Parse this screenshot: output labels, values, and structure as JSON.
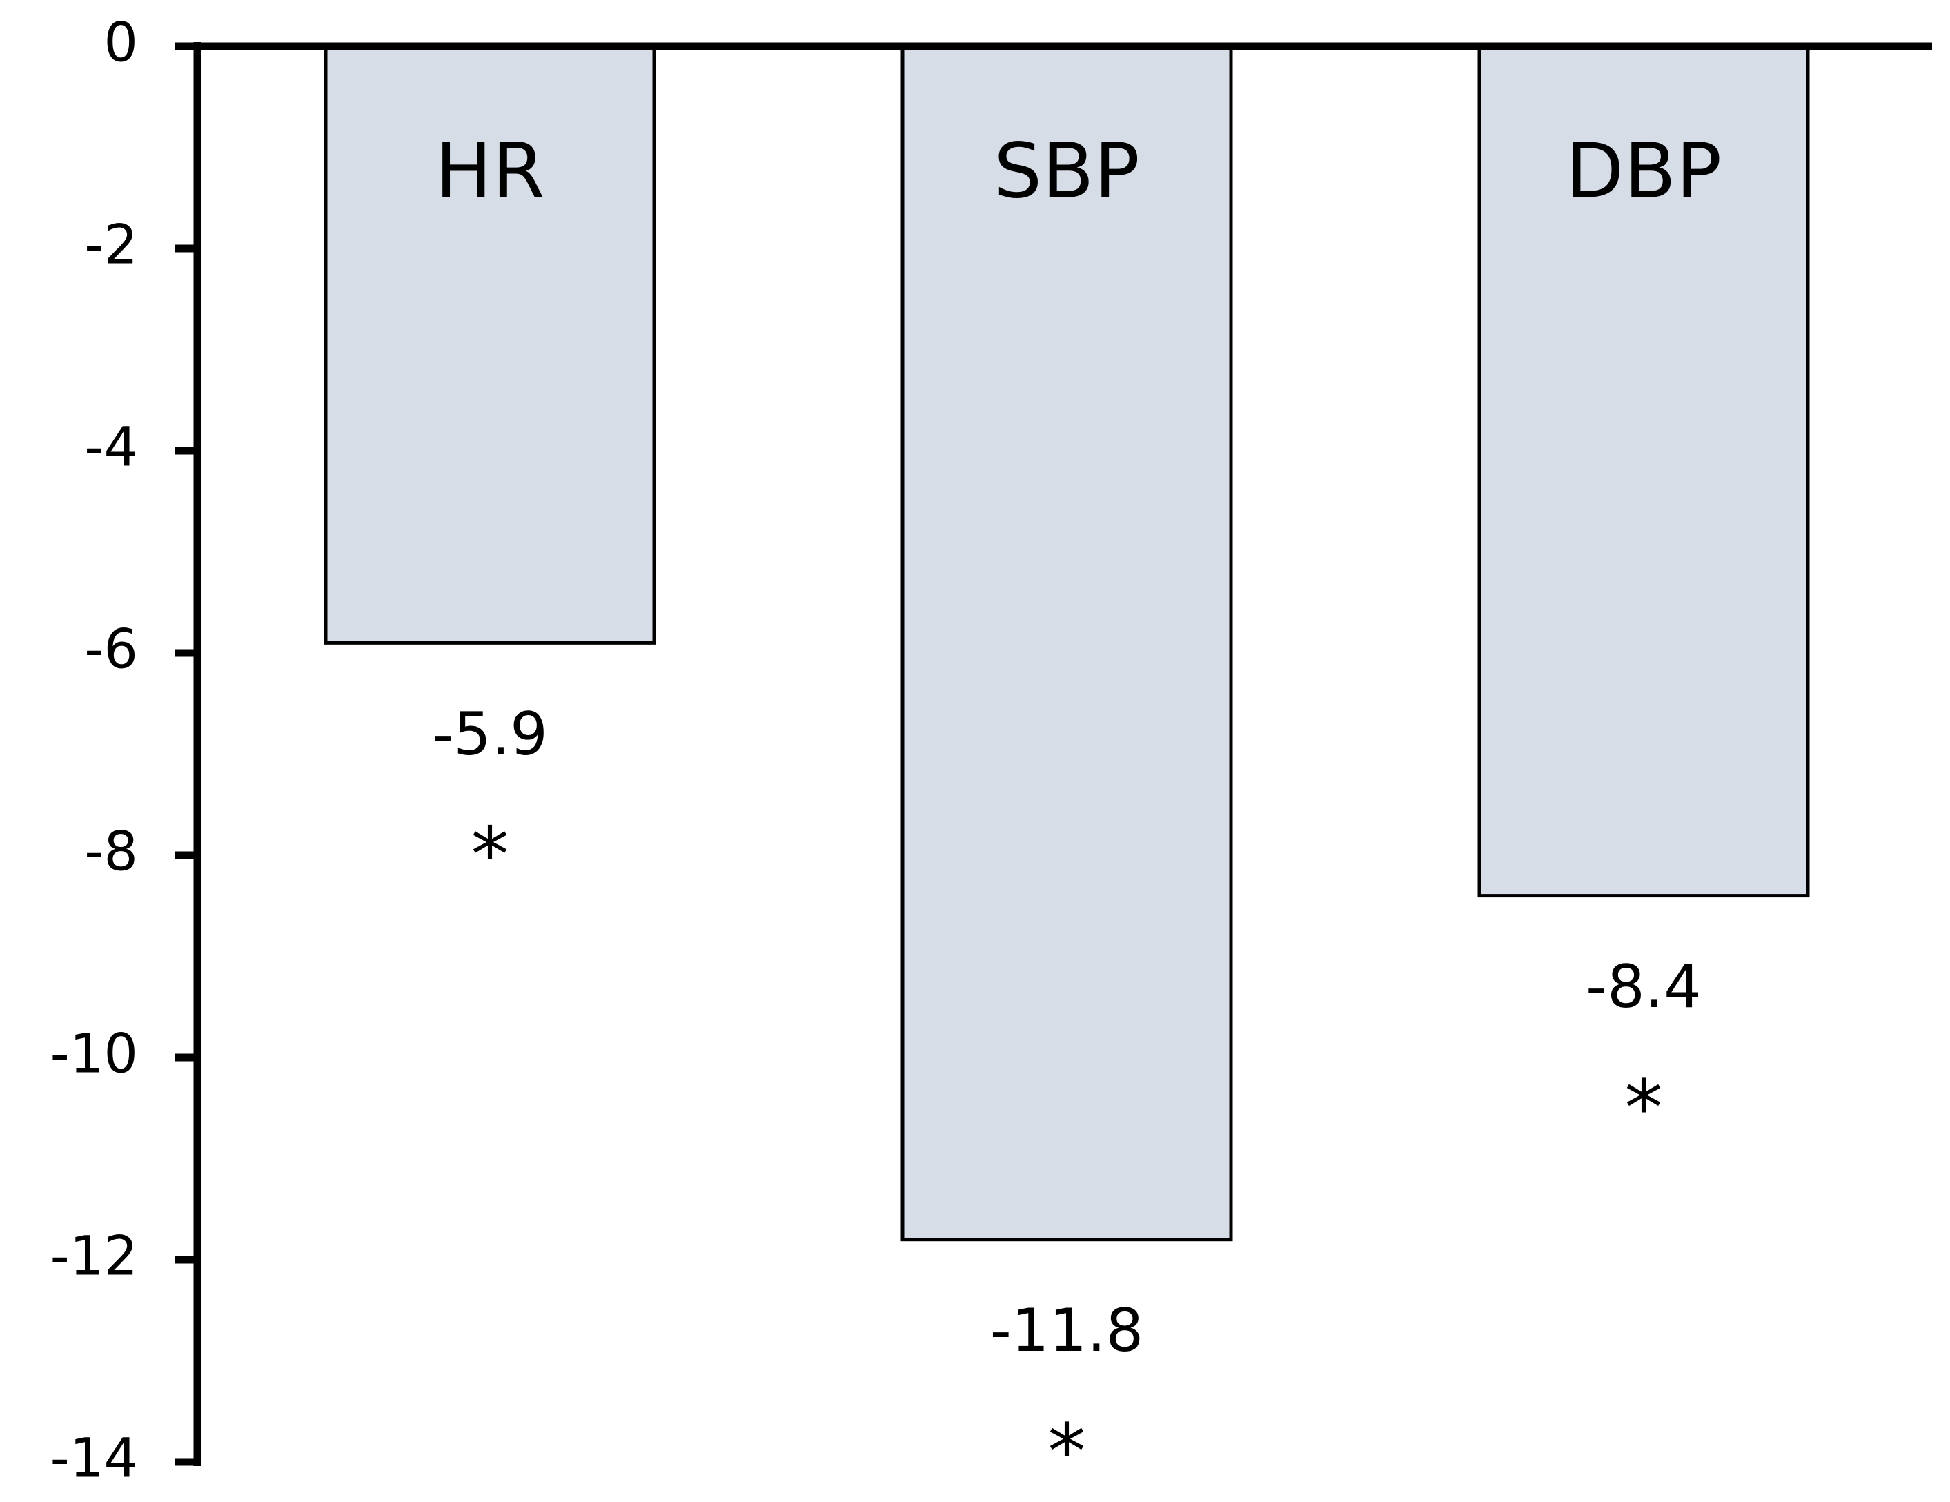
{
  "chart_data": {
    "type": "bar",
    "categories": [
      "HR",
      "SBP",
      "DBP"
    ],
    "values": [
      -5.9,
      -11.8,
      -8.4
    ],
    "significance": [
      "*",
      "*",
      "*"
    ],
    "color": "#d6dde6",
    "ylim": [
      -14,
      0
    ],
    "yticks": [
      0,
      -2,
      -4,
      -6,
      -8,
      -10,
      -12,
      -14
    ],
    "grid": false
  }
}
